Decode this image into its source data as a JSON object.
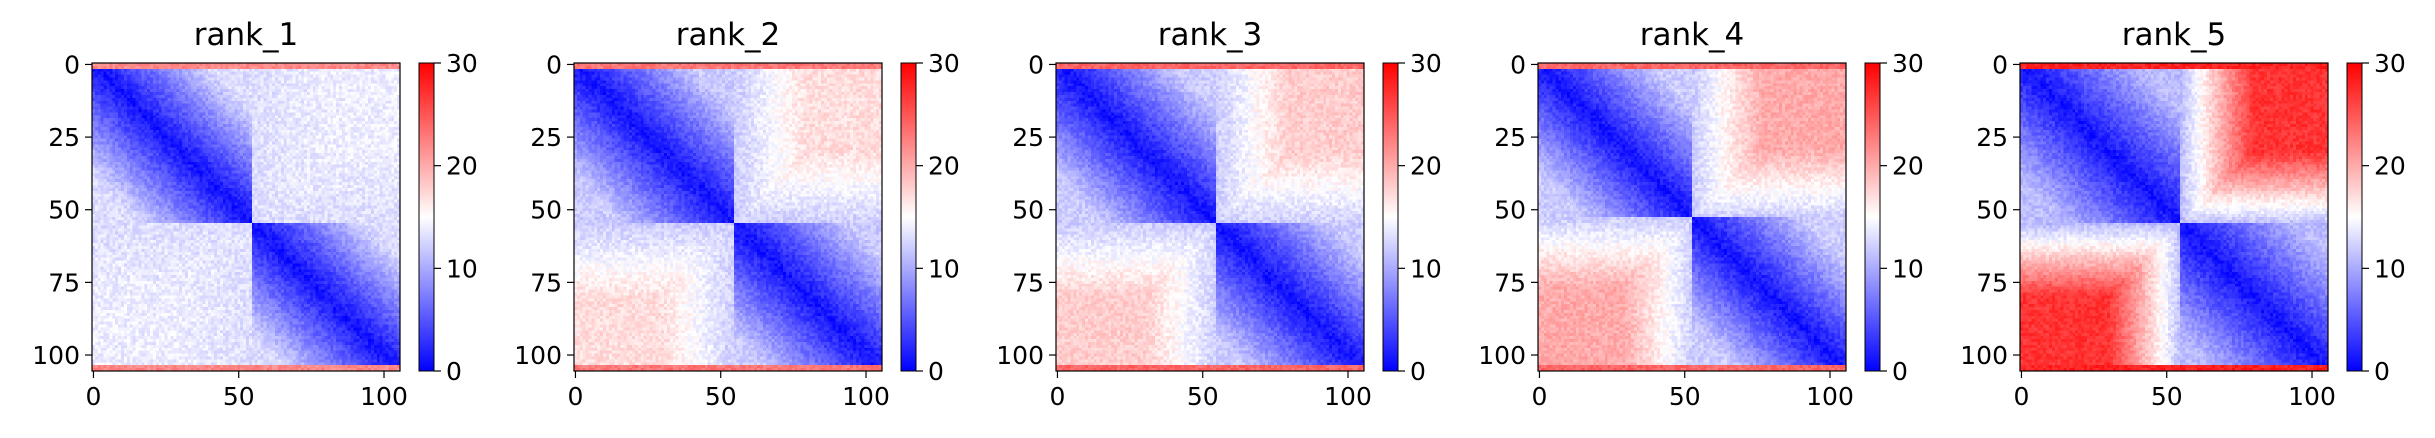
{
  "chart_data": [
    {
      "type": "heatmap",
      "title": "rank_1",
      "n": 106,
      "xticks": [
        0,
        50,
        100
      ],
      "yticks": [
        0,
        25,
        50,
        75,
        100
      ],
      "colorbar": {
        "min": 0,
        "max": 30,
        "ticks": [
          0,
          10,
          20,
          30
        ],
        "colors": [
          "#0000ff",
          "#ffffff",
          "#ff0000"
        ]
      },
      "split_index": 55,
      "within_block_distance": {
        "near_diagonal": 1,
        "far": 13
      },
      "cross_block_distance": 14,
      "edge_rows_distance": 22
    },
    {
      "type": "heatmap",
      "title": "rank_2",
      "n": 106,
      "xticks": [
        0,
        50,
        100
      ],
      "yticks": [
        0,
        25,
        50,
        75,
        100
      ],
      "colorbar": {
        "min": 0,
        "max": 30,
        "ticks": [
          0,
          10,
          20,
          30
        ],
        "colors": [
          "#0000ff",
          "#ffffff",
          "#ff0000"
        ]
      },
      "split_index": 55,
      "within_block_distance": {
        "near_diagonal": 1,
        "far": 12
      },
      "cross_block_distance": 17,
      "edge_rows_distance": 23
    },
    {
      "type": "heatmap",
      "title": "rank_3",
      "n": 106,
      "xticks": [
        0,
        50,
        100
      ],
      "yticks": [
        0,
        25,
        50,
        75,
        100
      ],
      "colorbar": {
        "min": 0,
        "max": 30,
        "ticks": [
          0,
          10,
          20,
          30
        ],
        "colors": [
          "#0000ff",
          "#ffffff",
          "#ff0000"
        ]
      },
      "split_index": 55,
      "within_block_distance": {
        "near_diagonal": 1,
        "far": 12
      },
      "cross_block_distance": 18,
      "edge_rows_distance": 24
    },
    {
      "type": "heatmap",
      "title": "rank_4",
      "n": 106,
      "xticks": [
        0,
        50,
        100
      ],
      "yticks": [
        0,
        25,
        50,
        75,
        100
      ],
      "colorbar": {
        "min": 0,
        "max": 30,
        "ticks": [
          0,
          10,
          20,
          30
        ],
        "colors": [
          "#0000ff",
          "#ffffff",
          "#ff0000"
        ]
      },
      "split_index": 53,
      "within_block_distance": {
        "near_diagonal": 1,
        "far": 12
      },
      "cross_block_distance": 20,
      "edge_rows_distance": 24
    },
    {
      "type": "heatmap",
      "title": "rank_5",
      "n": 106,
      "xticks": [
        0,
        50,
        100
      ],
      "yticks": [
        0,
        25,
        50,
        75,
        100
      ],
      "colorbar": {
        "min": 0,
        "max": 30,
        "ticks": [
          0,
          10,
          20,
          30
        ],
        "colors": [
          "#0000ff",
          "#ffffff",
          "#ff0000"
        ]
      },
      "split_index": 55,
      "within_block_distance": {
        "near_diagonal": 1,
        "far": 11
      },
      "cross_block_distance": 27,
      "edge_rows_distance": 28
    }
  ]
}
